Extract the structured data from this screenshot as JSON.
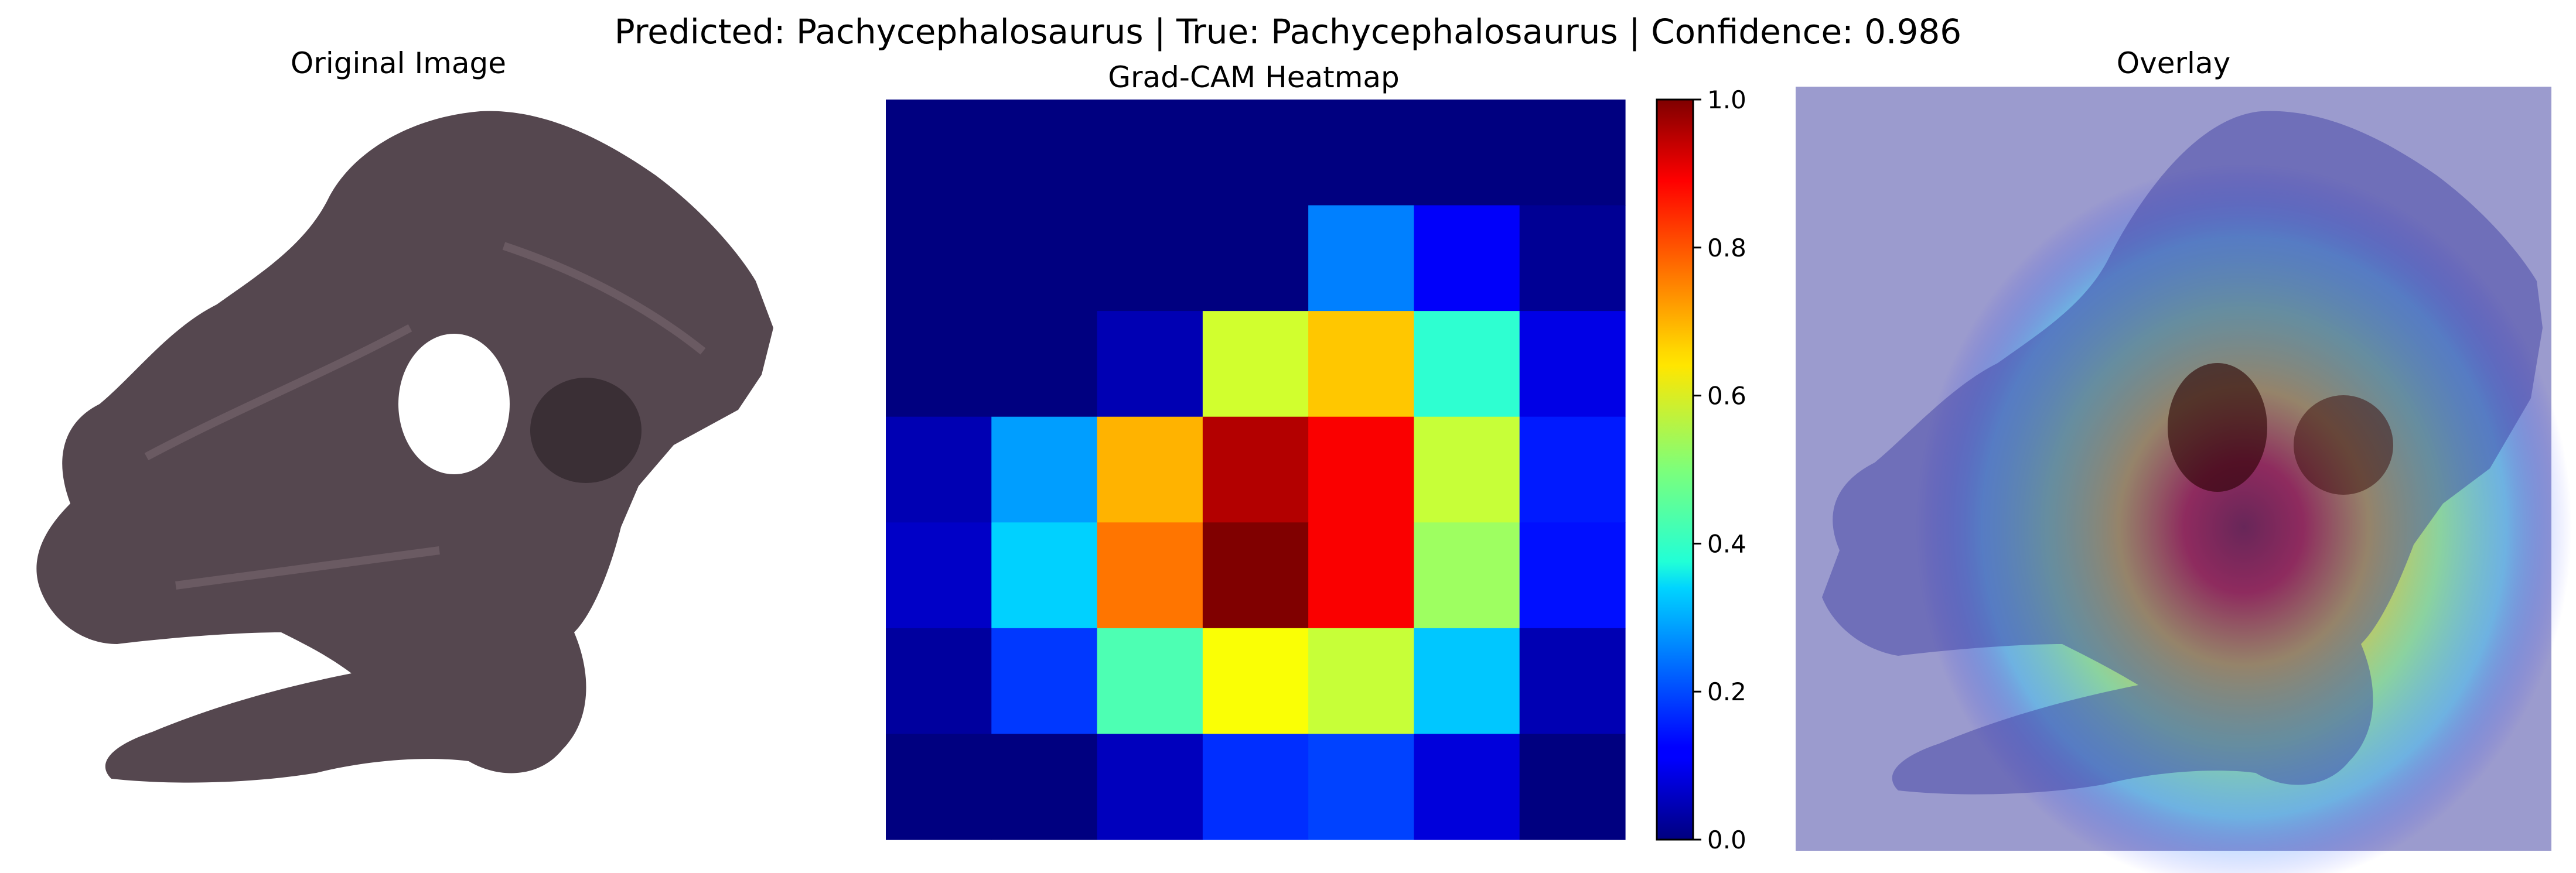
{
  "suptitle": "Predicted: Pachycephalosaurus | True: Pachycephalosaurus | Confidence: 0.986",
  "panels": {
    "original_title": "Original Image",
    "heatmap_title": "Grad-CAM Heatmap",
    "overlay_title": "Overlay"
  },
  "chart_data": {
    "type": "heatmap",
    "title": "Grad-CAM Heatmap",
    "colormap": "jet",
    "rows": 7,
    "cols": 7,
    "values": [
      [
        0.0,
        0.0,
        0.0,
        0.0,
        0.0,
        0.0,
        0.0
      ],
      [
        0.0,
        0.0,
        0.0,
        0.0,
        0.25,
        0.12,
        0.02
      ],
      [
        0.0,
        0.0,
        0.05,
        0.58,
        0.68,
        0.42,
        0.1
      ],
      [
        0.05,
        0.28,
        0.7,
        0.95,
        0.88,
        0.57,
        0.15
      ],
      [
        0.07,
        0.33,
        0.76,
        1.0,
        0.88,
        0.53,
        0.14
      ],
      [
        0.03,
        0.18,
        0.45,
        0.62,
        0.57,
        0.32,
        0.05
      ],
      [
        0.0,
        0.0,
        0.06,
        0.17,
        0.19,
        0.09,
        0.0
      ]
    ],
    "colorbar": {
      "range": [
        0.0,
        1.0
      ],
      "ticks": [
        "0.0",
        "0.2",
        "0.4",
        "0.6",
        "0.8",
        "1.0"
      ]
    }
  }
}
